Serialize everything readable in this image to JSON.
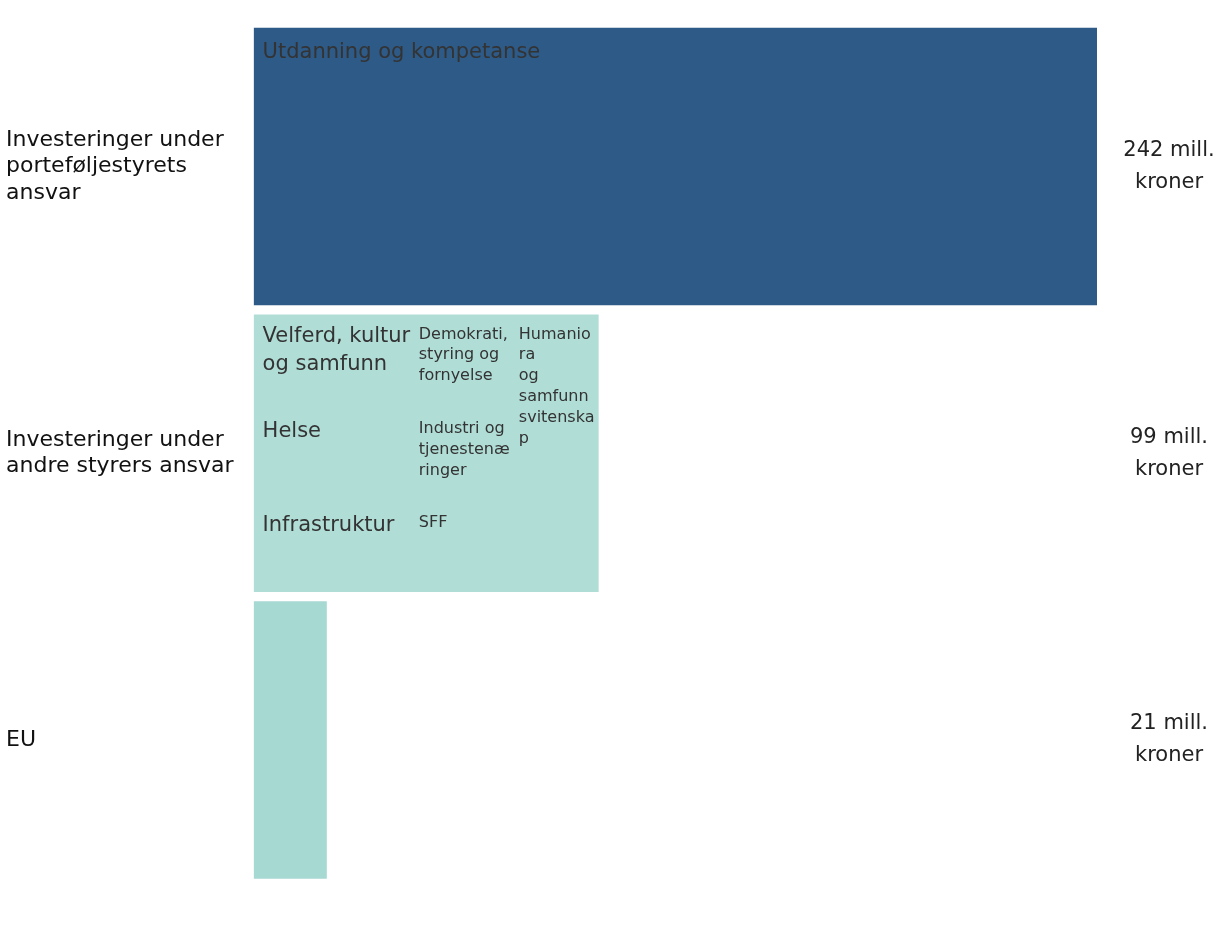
{
  "chart_data": {
    "type": "bar",
    "orientation": "horizontal",
    "categories": [
      "Investeringer under porteføljestyrets ansvar",
      "Investeringer under andre styrers ansvar",
      "EU"
    ],
    "values": [
      242,
      99,
      21
    ],
    "colors": [
      "#2e5a87",
      "#b0ddd6",
      "#a7d9d3"
    ],
    "value_labels": [
      "242 mill. kroner",
      "99 mill. kroner",
      "21 mill. kroner"
    ],
    "xlim": [
      0,
      242
    ],
    "tick_labels": "y",
    "grid": false,
    "legend": false,
    "annotations": [
      "Utdanning og kompetanse",
      "Velferd, kultur og samfunn",
      "Helse",
      "Infrastruktur",
      "Demokrati, styring og fornyelse",
      "Industri og tjenestenæringer",
      "SFF",
      "Humaniora og samfunnsvitenskap"
    ]
  }
}
